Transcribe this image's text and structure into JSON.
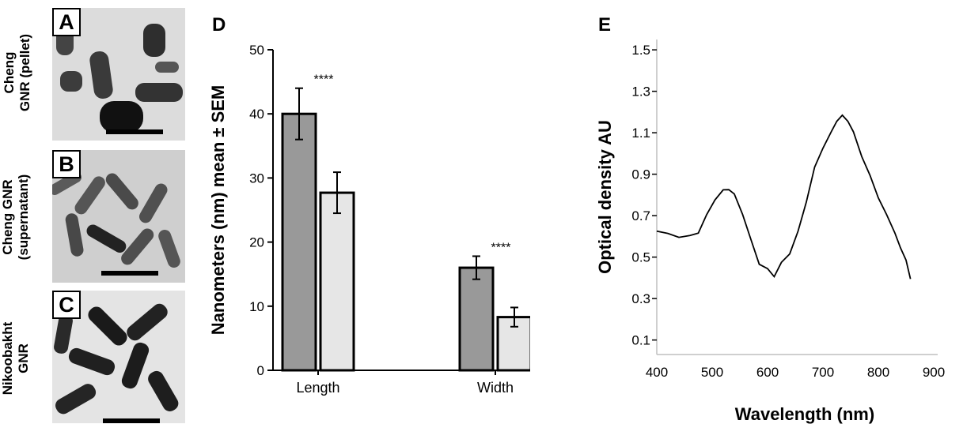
{
  "panels": {
    "A": {
      "letter": "A",
      "label_line1": "Cheng",
      "label_line2": "GNR (pellet)"
    },
    "B": {
      "letter": "B",
      "label_line1": "Cheng GNR",
      "label_line2": "(supernatant)"
    },
    "C": {
      "letter": "C",
      "label_line1": "Nikoobakht",
      "label_line2": "GNR"
    },
    "D": {
      "letter": "D"
    },
    "E": {
      "letter": "E"
    }
  },
  "chart_data": [
    {
      "panel": "D",
      "type": "bar",
      "categories": [
        "Length",
        "Width"
      ],
      "series": [
        {
          "values": [
            40,
            16
          ],
          "errors": [
            4,
            1.8
          ],
          "color": "#999999"
        },
        {
          "values": [
            27.7,
            8.3
          ],
          "errors": [
            3.2,
            1.5
          ],
          "color": "#e6e6e6"
        }
      ],
      "annotations": [
        {
          "category": "Length",
          "text": "****"
        },
        {
          "category": "Width",
          "text": "****"
        }
      ],
      "ylabel": "Nanometers (nm) mean ± SEM",
      "xlabel": "",
      "ylim": [
        0,
        50
      ],
      "yticks": [
        0,
        10,
        20,
        30,
        40,
        50
      ],
      "grid": false
    },
    {
      "panel": "E",
      "type": "line",
      "xlabel": "Wavelength (nm)",
      "ylabel": "Optical density AU",
      "xlim": [
        400,
        900
      ],
      "ylim": [
        0.03,
        1.55
      ],
      "xticks": [
        400,
        500,
        600,
        700,
        800,
        900
      ],
      "yticks": [
        0.1,
        0.3,
        0.5,
        0.7,
        0.9,
        1.1,
        1.3,
        1.5
      ],
      "grid": false,
      "series": [
        {
          "color": "#000000",
          "points": [
            [
              400,
              0.63
            ],
            [
              420,
              0.61
            ],
            [
              440,
              0.6
            ],
            [
              460,
              0.6
            ],
            [
              475,
              0.62
            ],
            [
              490,
              0.7
            ],
            [
              505,
              0.78
            ],
            [
              520,
              0.82
            ],
            [
              530,
              0.83
            ],
            [
              540,
              0.8
            ],
            [
              555,
              0.71
            ],
            [
              570,
              0.58
            ],
            [
              585,
              0.47
            ],
            [
              600,
              0.44
            ],
            [
              612,
              0.41
            ],
            [
              625,
              0.47
            ],
            [
              640,
              0.52
            ],
            [
              655,
              0.62
            ],
            [
              670,
              0.77
            ],
            [
              685,
              0.93
            ],
            [
              700,
              1.03
            ],
            [
              715,
              1.1
            ],
            [
              725,
              1.16
            ],
            [
              735,
              1.18
            ],
            [
              745,
              1.16
            ],
            [
              755,
              1.1
            ],
            [
              770,
              0.99
            ],
            [
              785,
              0.89
            ],
            [
              800,
              0.79
            ],
            [
              815,
              0.7
            ],
            [
              830,
              0.62
            ],
            [
              840,
              0.54
            ],
            [
              850,
              0.49
            ],
            [
              858,
              0.39
            ]
          ]
        }
      ]
    }
  ]
}
